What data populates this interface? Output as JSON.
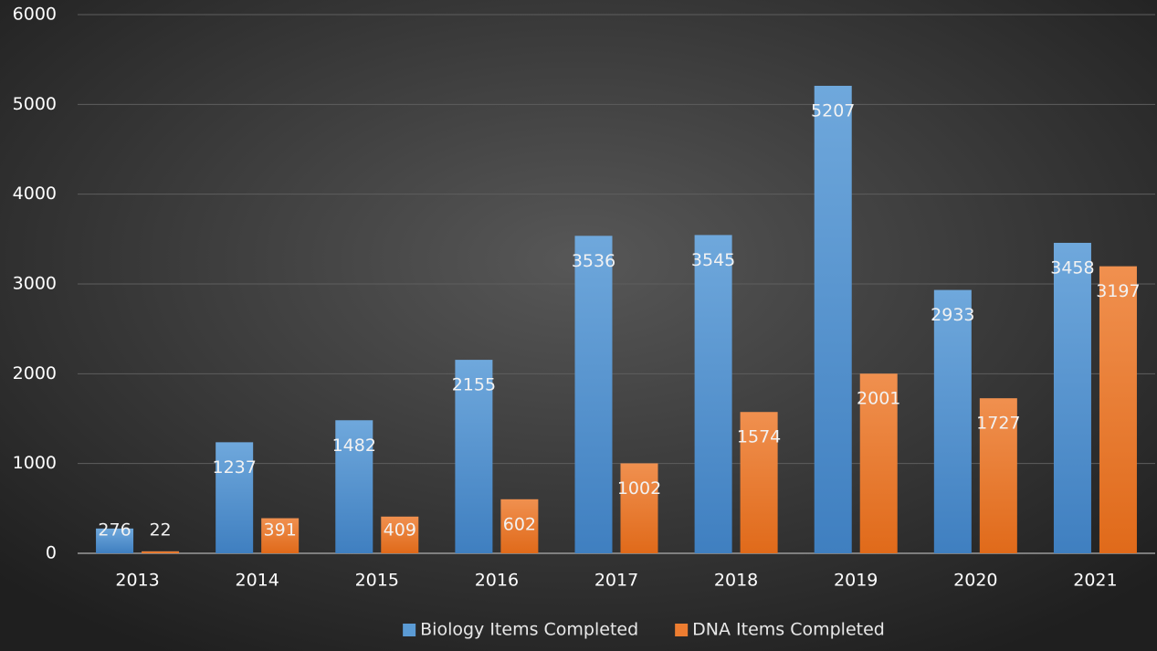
{
  "chart_data": {
    "type": "bar",
    "categories": [
      "2013",
      "2014",
      "2015",
      "2016",
      "2017",
      "2018",
      "2019",
      "2020",
      "2021"
    ],
    "series": [
      {
        "name": "Biology Items Completed",
        "color": "#5b9bd5",
        "values": [
          276,
          1237,
          1482,
          2155,
          3536,
          3545,
          5207,
          2933,
          3458
        ]
      },
      {
        "name": "DNA Items Completed",
        "color": "#ed7d31",
        "values": [
          22,
          391,
          409,
          602,
          1002,
          1574,
          2001,
          1727,
          3197
        ]
      }
    ],
    "ylim": [
      0,
      6000
    ],
    "yticks": [
      0,
      1000,
      2000,
      3000,
      4000,
      5000,
      6000
    ],
    "grid": true,
    "legend": "bottom"
  }
}
